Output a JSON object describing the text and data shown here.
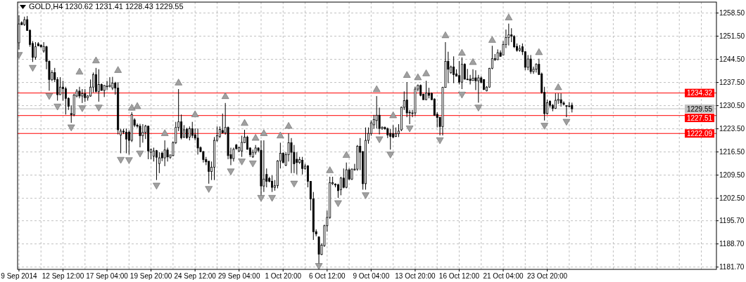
{
  "chart_data": {
    "type": "candlestick",
    "title": "GOLD,H4 1230.62 1231.41 1228.43 1229.55",
    "color": "#000000",
    "categories": [
      "9 Sep 2014",
      null,
      null,
      null,
      null,
      null,
      null,
      null,
      null,
      null,
      null,
      null,
      null,
      null,
      null,
      null,
      "12 Sep 12:00",
      null,
      null,
      null,
      null,
      null,
      null,
      null,
      null,
      null,
      null,
      null,
      null,
      null,
      null,
      null,
      "17 Sep 04:00",
      null,
      null,
      null,
      null,
      null,
      null,
      null,
      null,
      null,
      null,
      null,
      null,
      null,
      null,
      null,
      "19 Sep 20:00",
      null,
      null,
      null,
      null,
      null,
      null,
      null,
      null,
      null,
      null,
      null,
      null,
      null,
      null,
      null,
      "24 Sep 12:00",
      null,
      null,
      null,
      null,
      null,
      null,
      null,
      null,
      null,
      null,
      null,
      null,
      null,
      null,
      null,
      "29 Sep 04:00",
      null,
      null,
      null,
      null,
      null,
      null,
      null,
      null,
      null,
      null,
      null,
      null,
      null,
      null,
      null,
      "1 Oct 20:00",
      null,
      null,
      null,
      null,
      null,
      null,
      null,
      null,
      null,
      null,
      null,
      null,
      null,
      null,
      null,
      "6 Oct 12:00",
      null,
      null,
      null,
      null,
      null,
      null,
      null,
      null,
      null,
      null,
      null,
      null,
      null,
      null,
      null,
      "9 Oct 04:00",
      null,
      null,
      null,
      null,
      null,
      null,
      null,
      null,
      null,
      null,
      null,
      null,
      null,
      null,
      null,
      "13 Oct 20:00",
      null,
      null,
      null,
      null,
      null,
      null,
      null,
      null,
      null,
      null,
      null,
      null,
      null,
      null,
      null,
      "16 Oct 12:00",
      null,
      null,
      null,
      null,
      null,
      null,
      null,
      null,
      null,
      null,
      null,
      null,
      null,
      null,
      null,
      "21 Oct 04:00",
      null,
      null,
      null,
      null,
      null,
      null,
      null,
      null,
      null,
      null,
      null,
      null,
      null,
      null,
      null,
      "23 Oct 20:00",
      null,
      null,
      null,
      null,
      null,
      null,
      null,
      null,
      null,
      null,
      null,
      null,
      null,
      null,
      null,
      null,
      null,
      null,
      null,
      null,
      null,
      null,
      null,
      null,
      null,
      null,
      null,
      null,
      null,
      null,
      null,
      null,
      null,
      null,
      null,
      null,
      null,
      null,
      null,
      null,
      null,
      null,
      null,
      null,
      null,
      null,
      null,
      null,
      null,
      null,
      null,
      null,
      null,
      null,
      null,
      null,
      null,
      null,
      null,
      null,
      null
    ],
    "ohlc": [
      [
        1249.5,
        1257.8,
        1247.5,
        1255.2
      ],
      [
        1255.6,
        1256.0,
        1254.8,
        1255.0
      ],
      [
        1255.0,
        1257.4,
        1254.6,
        1256.5
      ],
      [
        1256.5,
        1257.6,
        1253.2,
        1253.2
      ],
      [
        1253.2,
        1253.6,
        1248.3,
        1249.0
      ],
      [
        1249.3,
        1250.0,
        1243.7,
        1245.1
      ],
      [
        1245.1,
        1249.7,
        1244.4,
        1248.3
      ],
      [
        1249.2,
        1249.7,
        1248.5,
        1248.6
      ],
      [
        1248.8,
        1249.0,
        1247.9,
        1248.3
      ],
      [
        1247.0,
        1249.7,
        1246.5,
        1248.4
      ],
      [
        1248.3,
        1248.6,
        1241.5,
        1243.9
      ],
      [
        1243.9,
        1244.2,
        1235.0,
        1238.4
      ],
      [
        1238.4,
        1241.2,
        1237.9,
        1240.5
      ],
      [
        1240.5,
        1241.9,
        1237.6,
        1238.4
      ],
      [
        1238.4,
        1239.1,
        1232.0,
        1233.8
      ],
      [
        1233.8,
        1239.1,
        1233.8,
        1236.1
      ],
      [
        1236.1,
        1238.0,
        1232.0,
        1235.6
      ],
      [
        1235.6,
        1236.2,
        1227.8,
        1232.7
      ],
      [
        1232.7,
        1233.0,
        1229.2,
        1230.3
      ],
      [
        1228.1,
        1230.6,
        1225.3,
        1227.8
      ],
      [
        1227.8,
        1234.1,
        1227.3,
        1233.7
      ],
      [
        1233.4,
        1235.5,
        1233.0,
        1234.9
      ],
      [
        1234.9,
        1236.2,
        1232.7,
        1233.4
      ],
      [
        1233.4,
        1235.5,
        1231.3,
        1234.1
      ],
      [
        1234.1,
        1235.5,
        1231.6,
        1232.9
      ],
      [
        1232.9,
        1233.7,
        1232.0,
        1233.4
      ],
      [
        1233.4,
        1238.4,
        1233.2,
        1236.1
      ],
      [
        1236.1,
        1240.5,
        1234.5,
        1239.9
      ],
      [
        1239.9,
        1241.9,
        1234.5,
        1234.8
      ],
      [
        1234.8,
        1241.5,
        1231.7,
        1236.9
      ],
      [
        1236.9,
        1237.2,
        1235.0,
        1235.1
      ],
      [
        1235.1,
        1236.7,
        1233.1,
        1236.6
      ],
      [
        1236.4,
        1238.0,
        1235.2,
        1236.3
      ],
      [
        1236.3,
        1239.1,
        1236.0,
        1236.6
      ],
      [
        1235.8,
        1239.2,
        1235.2,
        1237.3
      ],
      [
        1237.3,
        1237.7,
        1233.8,
        1235.8
      ],
      [
        1235.8,
        1237.6,
        1221.8,
        1223.2
      ],
      [
        1221.6,
        1223.5,
        1216.1,
        1222.8
      ],
      [
        1222.8,
        1223.5,
        1221.9,
        1222.5
      ],
      [
        1222.5,
        1223.6,
        1216.1,
        1220.4
      ],
      [
        1222.5,
        1223.0,
        1215.7,
        1220.0
      ],
      [
        1220.0,
        1228.5,
        1219.5,
        1227.8
      ],
      [
        1226.2,
        1226.7,
        1224.0,
        1224.6
      ],
      [
        1224.6,
        1225.1,
        1223.8,
        1224.3
      ],
      [
        1224.3,
        1225.0,
        1217.9,
        1221.4
      ],
      [
        1221.4,
        1224.9,
        1219.3,
        1222.4
      ],
      [
        1222.4,
        1224.7,
        1220.4,
        1224.3
      ],
      [
        1224.3,
        1224.4,
        1214.3,
        1216.8
      ],
      [
        1216.4,
        1217.5,
        1214.3,
        1217.3
      ],
      [
        1215.2,
        1217.8,
        1213.6,
        1216.8
      ],
      [
        1216.9,
        1217.1,
        1208.0,
        1214.9
      ],
      [
        1213.0,
        1216.4,
        1210.1,
        1214.7
      ],
      [
        1216.1,
        1216.6,
        1213.7,
        1214.7
      ],
      [
        1214.7,
        1220.0,
        1212.2,
        1217.1
      ],
      [
        1217.1,
        1217.8,
        1213.6,
        1215.0
      ],
      [
        1214.9,
        1215.6,
        1214.4,
        1215.6
      ],
      [
        1215.4,
        1219.7,
        1215.2,
        1219.3
      ],
      [
        1219.3,
        1225.6,
        1218.9,
        1223.9
      ],
      [
        1223.9,
        1235.5,
        1222.8,
        1225.6
      ],
      [
        1225.6,
        1227.8,
        1220.3,
        1220.8
      ],
      [
        1221.0,
        1224.6,
        1220.7,
        1223.2
      ],
      [
        1223.4,
        1223.8,
        1220.5,
        1220.8
      ],
      [
        1221.0,
        1224.2,
        1220.0,
        1223.5
      ],
      [
        1223.5,
        1225.6,
        1220.7,
        1221.5
      ],
      [
        1221.7,
        1223.6,
        1220.0,
        1220.7
      ],
      [
        1220.7,
        1223.6,
        1215.7,
        1217.7
      ],
      [
        1217.8,
        1218.2,
        1216.4,
        1216.6
      ],
      [
        1216.6,
        1216.8,
        1213.3,
        1214.2
      ],
      [
        1214.2,
        1215.0,
        1212.5,
        1213.5
      ],
      [
        1213.7,
        1213.7,
        1206.9,
        1210.6
      ],
      [
        1210.6,
        1213.6,
        1208.0,
        1211.9
      ],
      [
        1211.9,
        1221.0,
        1208.0,
        1220.0
      ],
      [
        1220.0,
        1224.2,
        1219.6,
        1221.4
      ],
      [
        1221.2,
        1224.2,
        1220.7,
        1223.3
      ],
      [
        1223.0,
        1228.1,
        1222.1,
        1222.3
      ],
      [
        1222.3,
        1231.3,
        1221.7,
        1223.9
      ],
      [
        1223.9,
        1224.2,
        1214.3,
        1215.4
      ],
      [
        1215.7,
        1217.8,
        1212.5,
        1214.5
      ],
      [
        1214.5,
        1217.8,
        1213.6,
        1217.3
      ],
      [
        1218.6,
        1218.9,
        1217.2,
        1217.5
      ],
      [
        1216.8,
        1218.1,
        1216.4,
        1217.8
      ],
      [
        1216.8,
        1221.4,
        1215.0,
        1219.4
      ],
      [
        1219.3,
        1223.2,
        1219.3,
        1221.0
      ],
      [
        1221.0,
        1221.4,
        1217.2,
        1217.3
      ],
      [
        1217.7,
        1217.9,
        1215.0,
        1215.7
      ],
      [
        1215.0,
        1217.2,
        1214.7,
        1216.4
      ],
      [
        1216.4,
        1218.6,
        1215.7,
        1217.7
      ],
      [
        1217.7,
        1217.9,
        1216.4,
        1217.0
      ],
      [
        1217.0,
        1220.0,
        1203.0,
        1206.2
      ],
      [
        1206.2,
        1220.0,
        1204.4,
        1208.3
      ],
      [
        1209.7,
        1211.5,
        1205.8,
        1207.6
      ],
      [
        1208.5,
        1209.0,
        1207.3,
        1207.6
      ],
      [
        1207.6,
        1209.4,
        1204.4,
        1205.8
      ],
      [
        1205.8,
        1208.0,
        1204.8,
        1206.3
      ],
      [
        1206.3,
        1214.0,
        1205.5,
        1213.8
      ],
      [
        1213.8,
        1219.3,
        1211.5,
        1216.1
      ],
      [
        1216.1,
        1216.4,
        1213.1,
        1213.3
      ],
      [
        1212.5,
        1216.4,
        1212.2,
        1215.7
      ],
      [
        1215.7,
        1222.1,
        1213.6,
        1219.3
      ],
      [
        1219.3,
        1220.7,
        1210.1,
        1216.4
      ],
      [
        1216.4,
        1218.6,
        1210.1,
        1212.9
      ],
      [
        1214.3,
        1216.4,
        1209.7,
        1213.3
      ],
      [
        1213.3,
        1215.0,
        1212.9,
        1214.2
      ],
      [
        1214.0,
        1215.0,
        1209.7,
        1211.5
      ],
      [
        1211.5,
        1212.9,
        1211.1,
        1212.2
      ],
      [
        1212.3,
        1212.5,
        1205.8,
        1207.6
      ],
      [
        1207.6,
        1207.6,
        1198.8,
        1202.3
      ],
      [
        1202.3,
        1204.4,
        1189.9,
        1192.4
      ],
      [
        1192.4,
        1193.1,
        1191.0,
        1191.7
      ],
      [
        1190.8,
        1191.0,
        1182.5,
        1185.6
      ],
      [
        1185.5,
        1188.9,
        1185.3,
        1188.3
      ],
      [
        1188.2,
        1194.5,
        1187.8,
        1194.2
      ],
      [
        1194.2,
        1198.8,
        1192.4,
        1196.7
      ],
      [
        1196.7,
        1209.0,
        1196.3,
        1207.2
      ],
      [
        1206.9,
        1209.0,
        1206.5,
        1207.2
      ],
      [
        1206.8,
        1207.0,
        1205.8,
        1206.5
      ],
      [
        1206.6,
        1206.9,
        1202.6,
        1204.8
      ],
      [
        1205.1,
        1209.0,
        1203.4,
        1208.6
      ],
      [
        1208.6,
        1211.5,
        1205.5,
        1205.8
      ],
      [
        1205.8,
        1213.3,
        1205.5,
        1211.1
      ],
      [
        1211.1,
        1211.6,
        1208.0,
        1208.3
      ],
      [
        1208.3,
        1211.5,
        1208.0,
        1211.3
      ],
      [
        1211.1,
        1212.9,
        1210.8,
        1211.3
      ],
      [
        1211.3,
        1218.6,
        1210.8,
        1218.2
      ],
      [
        1218.2,
        1220.7,
        1211.0,
        1216.4
      ],
      [
        1216.6,
        1216.8,
        1205.1,
        1206.9
      ],
      [
        1206.9,
        1223.9,
        1205.1,
        1220.0
      ],
      [
        1220.0,
        1223.9,
        1219.0,
        1222.1
      ],
      [
        1222.1,
        1226.0,
        1221.4,
        1225.3
      ],
      [
        1224.7,
        1227.7,
        1223.5,
        1226.3
      ],
      [
        1226.0,
        1233.4,
        1223.6,
        1227.6
      ],
      [
        1227.6,
        1229.9,
        1221.8,
        1223.6
      ],
      [
        1223.6,
        1224.2,
        1223.2,
        1224.0
      ],
      [
        1223.9,
        1224.2,
        1223.2,
        1223.5
      ],
      [
        1223.5,
        1223.9,
        1220.7,
        1221.6
      ],
      [
        1222.1,
        1223.4,
        1217.2,
        1221.2
      ],
      [
        1222.0,
        1224.6,
        1220.7,
        1221.0
      ],
      [
        1221.2,
        1223.9,
        1221.0,
        1222.0
      ],
      [
        1222.0,
        1224.9,
        1221.0,
        1222.8
      ],
      [
        1223.2,
        1230.2,
        1222.8,
        1230.0
      ],
      [
        1230.0,
        1234.8,
        1229.2,
        1232.0
      ],
      [
        1232.2,
        1237.6,
        1227.0,
        1228.3
      ],
      [
        1228.5,
        1229.2,
        1224.9,
        1228.3
      ],
      [
        1228.1,
        1229.2,
        1227.0,
        1228.3
      ],
      [
        1228.3,
        1236.2,
        1227.4,
        1235.5
      ],
      [
        1235.5,
        1236.9,
        1234.8,
        1236.6
      ],
      [
        1236.6,
        1236.9,
        1233.3,
        1233.6
      ],
      [
        1233.9,
        1234.1,
        1232.3,
        1232.3
      ],
      [
        1232.3,
        1238.0,
        1232.2,
        1234.3
      ],
      [
        1234.3,
        1235.9,
        1232.7,
        1233.6
      ],
      [
        1234.2,
        1234.5,
        1232.2,
        1232.3
      ],
      [
        1232.5,
        1232.7,
        1227.4,
        1227.6
      ],
      [
        1227.9,
        1228.5,
        1223.9,
        1226.9
      ],
      [
        1227.0,
        1227.0,
        1221.5,
        1224.2
      ],
      [
        1224.2,
        1236.2,
        1221.5,
        1236.0
      ],
      [
        1236.0,
        1249.7,
        1235.9,
        1243.9
      ],
      [
        1243.9,
        1246.8,
        1237.3,
        1241.5
      ],
      [
        1240.5,
        1242.6,
        1240.1,
        1242.2
      ],
      [
        1242.2,
        1245.4,
        1237.3,
        1239.9
      ],
      [
        1240.1,
        1241.5,
        1239.4,
        1239.4
      ],
      [
        1239.6,
        1244.0,
        1236.9,
        1237.6
      ],
      [
        1237.6,
        1245.1,
        1235.5,
        1243.0
      ],
      [
        1243.0,
        1243.3,
        1238.4,
        1238.5
      ],
      [
        1238.5,
        1241.6,
        1238.2,
        1238.4
      ],
      [
        1238.5,
        1239.8,
        1236.9,
        1238.1
      ],
      [
        1238.1,
        1241.5,
        1238.0,
        1238.8
      ],
      [
        1238.9,
        1241.2,
        1235.2,
        1238.0
      ],
      [
        1238.0,
        1239.8,
        1231.4,
        1238.9
      ],
      [
        1238.9,
        1239.4,
        1237.3,
        1237.5
      ],
      [
        1238.4,
        1238.5,
        1235.2,
        1235.4
      ],
      [
        1235.0,
        1236.4,
        1234.8,
        1236.1
      ],
      [
        1236.1,
        1241.9,
        1235.9,
        1241.8
      ],
      [
        1241.8,
        1248.6,
        1241.5,
        1244.7
      ],
      [
        1244.7,
        1246.1,
        1244.0,
        1244.4
      ],
      [
        1244.4,
        1247.5,
        1244.3,
        1246.5
      ],
      [
        1246.5,
        1247.2,
        1245.4,
        1245.4
      ],
      [
        1245.8,
        1250.0,
        1245.8,
        1249.0
      ],
      [
        1249.0,
        1253.5,
        1247.9,
        1251.1
      ],
      [
        1251.1,
        1255.3,
        1248.7,
        1251.9
      ],
      [
        1251.9,
        1253.9,
        1249.7,
        1251.5
      ],
      [
        1251.4,
        1251.8,
        1247.9,
        1248.3
      ],
      [
        1248.4,
        1249.3,
        1246.8,
        1247.2
      ],
      [
        1247.2,
        1248.8,
        1246.8,
        1247.8
      ],
      [
        1248.3,
        1249.3,
        1245.8,
        1246.8
      ],
      [
        1246.8,
        1247.0,
        1241.2,
        1242.1
      ],
      [
        1242.1,
        1245.8,
        1241.2,
        1244.6
      ],
      [
        1244.6,
        1245.8,
        1240.1,
        1240.8
      ],
      [
        1240.8,
        1242.3,
        1240.1,
        1241.5
      ],
      [
        1241.5,
        1243.3,
        1240.5,
        1243.0
      ],
      [
        1243.0,
        1244.7,
        1239.8,
        1239.9
      ],
      [
        1240.1,
        1240.5,
        1234.1,
        1234.5
      ],
      [
        1234.5,
        1236.2,
        1226.0,
        1228.1
      ],
      [
        1228.1,
        1232.3,
        1227.8,
        1231.4
      ],
      [
        1231.8,
        1232.1,
        1229.9,
        1230.6
      ],
      [
        1230.6,
        1231.0,
        1228.8,
        1229.7
      ],
      [
        1229.7,
        1234.2,
        1229.5,
        1232.1
      ],
      [
        1232.1,
        1234.2,
        1231.0,
        1232.4
      ],
      [
        1232.3,
        1234.2,
        1230.2,
        1231.3
      ],
      [
        1231.3,
        1231.8,
        1230.6,
        1230.9
      ],
      [
        1230.5,
        1230.6,
        1227.0,
        1230.3
      ],
      [
        1230.3,
        1231.6,
        1230.0,
        1230.4
      ],
      [
        1230.62,
        1231.41,
        1228.43,
        1229.55
      ],
      null,
      null,
      null,
      null,
      null,
      null,
      null,
      null,
      null,
      null,
      null,
      null,
      null,
      null,
      null,
      null,
      null,
      null,
      null,
      null,
      null,
      null,
      null,
      null,
      null,
      null,
      null,
      null,
      null,
      null,
      null,
      null,
      null,
      null,
      null,
      null,
      null,
      null,
      null,
      null,
      null,
      null,
      null,
      null,
      null,
      null,
      null,
      null,
      null,
      null,
      null,
      null
    ],
    "series": [
      {
        "type": "scatter",
        "marker": "triangle",
        "color": "#a0a0a0",
        "values": [
          null,
          null,
          null,
          null,
          null,
          null,
          null,
          null,
          null,
          null,
          null,
          null,
          null,
          null,
          null,
          null,
          null,
          null,
          null,
          null,
          null,
          null,
          1240.8,
          null,
          null,
          null,
          null,
          null,
          1244.2,
          null,
          null,
          null,
          null,
          null,
          null,
          null,
          1241.3,
          null,
          null,
          null,
          null,
          1229.9,
          null,
          1230.4,
          null,
          null,
          null,
          null,
          null,
          null,
          null,
          null,
          null,
          1222.2,
          null,
          null,
          null,
          null,
          1237.5,
          null,
          null,
          null,
          null,
          null,
          1227.9,
          null,
          null,
          null,
          null,
          null,
          null,
          null,
          null,
          null,
          null,
          1233.4,
          null,
          null,
          null,
          null,
          null,
          null,
          1225.3,
          null,
          null,
          null,
          1220.8,
          null,
          null,
          1222.2,
          null,
          null,
          null,
          null,
          null,
          1221.5,
          null,
          null,
          1224.4,
          null,
          null,
          null,
          null,
          null,
          null,
          null,
          null,
          null,
          null,
          null,
          null,
          null,
          null,
          1211.0,
          null,
          null,
          null,
          null,
          null,
          1215.6,
          null,
          null,
          null,
          null,
          null,
          null,
          null,
          null,
          null,
          null,
          1235.5,
          null,
          null,
          null,
          null,
          null,
          1227.6,
          null,
          null,
          null,
          null,
          1239.8,
          null,
          null,
          null,
          1239.1,
          null,
          null,
          1240.3,
          null,
          null,
          null,
          null,
          null,
          null,
          1251.8,
          null,
          null,
          null,
          null,
          null,
          1246.5,
          null,
          null,
          null,
          1243.7,
          null,
          null,
          null,
          null,
          null,
          null,
          1250.4,
          null,
          null,
          null,
          null,
          null,
          1257.2,
          null,
          null,
          null,
          null,
          null,
          null,
          null,
          null,
          null,
          null,
          1246.7,
          null,
          null,
          null,
          null,
          null,
          null,
          1236.1,
          null,
          null,
          null,
          null,
          null,
          null,
          null,
          null,
          null,
          null,
          null,
          null,
          null,
          null,
          null,
          null,
          null,
          null,
          null,
          null,
          null,
          null,
          null,
          null,
          null,
          null,
          null,
          null,
          null,
          null,
          null,
          null,
          null,
          null,
          null,
          null,
          null,
          null,
          null,
          null,
          null,
          null,
          null,
          null,
          null,
          null,
          null,
          null,
          null,
          null,
          null,
          null,
          null,
          null,
          null,
          null,
          null
        ]
      },
      {
        "type": "scatter",
        "marker": "triangle",
        "color": "#a0a0a0",
        "values": [
          1245.8,
          null,
          null,
          null,
          null,
          1241.9,
          null,
          null,
          null,
          null,
          null,
          1233.4,
          null,
          null,
          1230.2,
          null,
          null,
          null,
          null,
          1223.9,
          null,
          null,
          null,
          1229.7,
          null,
          null,
          null,
          null,
          null,
          1229.9,
          null,
          null,
          null,
          null,
          null,
          null,
          null,
          1214.1,
          null,
          null,
          1214.0,
          null,
          null,
          null,
          1216.0,
          null,
          null,
          null,
          null,
          null,
          1206.3,
          null,
          null,
          null,
          null,
          null,
          null,
          null,
          null,
          null,
          null,
          null,
          null,
          null,
          null,
          null,
          null,
          null,
          null,
          1205.3,
          null,
          null,
          null,
          null,
          null,
          null,
          null,
          1210.6,
          null,
          null,
          null,
          1213.6,
          null,
          null,
          null,
          1213.0,
          null,
          null,
          1202.6,
          null,
          null,
          null,
          1202.6,
          null,
          null,
          null,
          null,
          null,
          null,
          null,
          1206.9,
          null,
          null,
          null,
          null,
          null,
          null,
          null,
          null,
          1182.0,
          null,
          null,
          null,
          null,
          null,
          null,
          1201.0,
          null,
          null,
          null,
          null,
          null,
          null,
          null,
          null,
          null,
          1203.4,
          null,
          null,
          null,
          null,
          1220.3,
          null,
          null,
          null,
          1215.7,
          null,
          null,
          null,
          null,
          null,
          null,
          1223.6,
          null,
          null,
          null,
          null,
          null,
          null,
          null,
          null,
          null,
          null,
          1220.0,
          null,
          null,
          null,
          null,
          null,
          null,
          null,
          1233.8,
          null,
          null,
          null,
          null,
          null,
          1229.9,
          null,
          null,
          null,
          null,
          null,
          null,
          null,
          null,
          null,
          null,
          null,
          null,
          null,
          null,
          null,
          null,
          null,
          null,
          null,
          null,
          null,
          null,
          null,
          1224.4,
          null,
          null,
          null,
          null,
          null,
          null,
          null,
          1225.6,
          null,
          null,
          null,
          null,
          null,
          null,
          null,
          null,
          null,
          null,
          null,
          null,
          null,
          null,
          null,
          null,
          null,
          null,
          null,
          null,
          null,
          null,
          null,
          null,
          null,
          null,
          null,
          null,
          null,
          null,
          null,
          null,
          null,
          null,
          null,
          null,
          null,
          null,
          null,
          null,
          null,
          null,
          null,
          null,
          null,
          null,
          null,
          null,
          null,
          null,
          null,
          null,
          null,
          null
        ]
      }
    ],
    "ylim": [
      1181.0,
      1261.8
    ],
    "yticks": [
      {
        "value": 1181.7,
        "label": "1181.70"
      },
      {
        "value": 1188.7,
        "label": "1188.70"
      },
      {
        "value": 1195.7,
        "label": "1195.70"
      },
      {
        "value": 1202.5,
        "label": "1202.50"
      },
      {
        "value": 1209.5,
        "label": "1209.50"
      },
      {
        "value": 1216.5,
        "label": "1216.50"
      },
      {
        "value": 1223.5,
        "label": "1223.50"
      },
      {
        "value": 1230.5,
        "label": "1230.50"
      },
      {
        "value": 1237.5,
        "label": "1237.50"
      },
      {
        "value": 1244.5,
        "label": "1244.50"
      },
      {
        "value": 1251.5,
        "label": "1251.50"
      },
      {
        "value": 1258.5,
        "label": "1258.50"
      }
    ],
    "grid": true,
    "ref_lines": [
      {
        "axis": "y",
        "value": 1234.32,
        "label": "1234.32",
        "color": "#ff0000"
      },
      {
        "axis": "y",
        "value": 1229.55,
        "label": "1229.55",
        "color": "#c0c0c0"
      },
      {
        "axis": "y",
        "value": 1227.51,
        "label": "1227.51",
        "color": "#ff0000"
      },
      {
        "axis": "y",
        "value": 1222.09,
        "label": "1222.09",
        "color": "#ff0000"
      }
    ]
  }
}
